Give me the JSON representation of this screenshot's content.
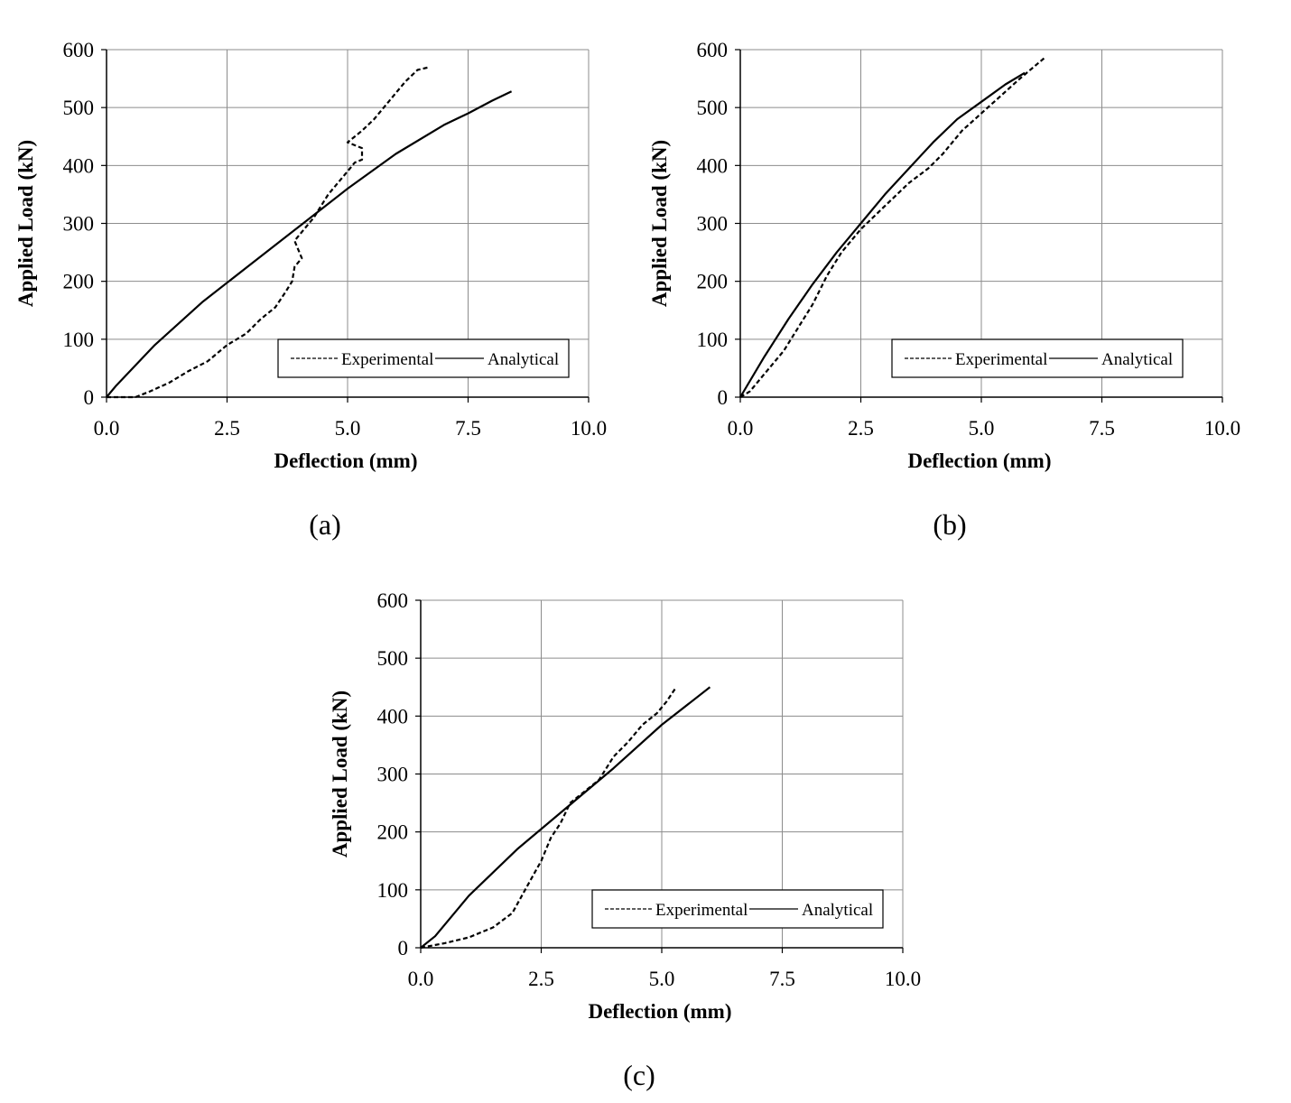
{
  "chart_data": [
    {
      "type": "line",
      "panel_label": "(a)",
      "xlabel": "Deflection (mm)",
      "ylabel": "Applied Load (kN)",
      "xlim": [
        0,
        10
      ],
      "ylim": [
        0,
        600
      ],
      "xticks": [
        "0.0",
        "2.5",
        "5.0",
        "7.5",
        "10.0"
      ],
      "yticks": [
        "0",
        "100",
        "200",
        "300",
        "400",
        "500",
        "600"
      ],
      "grid": true,
      "legend_position": "bottom-right",
      "series": [
        {
          "name": "Experimental",
          "style": "dashed",
          "points": [
            [
              0.0,
              0
            ],
            [
              0.6,
              0
            ],
            [
              0.9,
              10
            ],
            [
              1.3,
              25
            ],
            [
              1.7,
              45
            ],
            [
              2.1,
              62
            ],
            [
              2.5,
              90
            ],
            [
              2.9,
              110
            ],
            [
              3.2,
              135
            ],
            [
              3.5,
              155
            ],
            [
              3.7,
              180
            ],
            [
              3.85,
              200
            ],
            [
              3.9,
              225
            ],
            [
              4.05,
              240
            ],
            [
              3.9,
              270
            ],
            [
              4.1,
              290
            ],
            [
              4.3,
              310
            ],
            [
              4.45,
              330
            ],
            [
              4.6,
              350
            ],
            [
              4.8,
              370
            ],
            [
              5.0,
              390
            ],
            [
              5.15,
              405
            ],
            [
              5.3,
              410
            ],
            [
              5.3,
              430
            ],
            [
              5.0,
              440
            ],
            [
              5.3,
              460
            ],
            [
              5.55,
              480
            ],
            [
              5.8,
              505
            ],
            [
              6.0,
              525
            ],
            [
              6.2,
              545
            ],
            [
              6.45,
              565
            ],
            [
              6.7,
              570
            ]
          ]
        },
        {
          "name": "Analytical",
          "style": "solid",
          "points": [
            [
              0,
              0
            ],
            [
              0.2,
              20
            ],
            [
              1.0,
              90
            ],
            [
              2.0,
              165
            ],
            [
              3.0,
              230
            ],
            [
              4.0,
              295
            ],
            [
              5.0,
              360
            ],
            [
              6.0,
              420
            ],
            [
              7.0,
              470
            ],
            [
              7.5,
              490
            ],
            [
              8.0,
              512
            ],
            [
              8.4,
              528
            ]
          ]
        }
      ]
    },
    {
      "type": "line",
      "panel_label": "(b)",
      "xlabel": "Deflection (mm)",
      "ylabel": "Applied Load (kN)",
      "xlim": [
        0,
        10
      ],
      "ylim": [
        0,
        600
      ],
      "xticks": [
        "0.0",
        "2.5",
        "5.0",
        "7.5",
        "10.0"
      ],
      "yticks": [
        "0",
        "100",
        "200",
        "300",
        "400",
        "500",
        "600"
      ],
      "grid": true,
      "legend_position": "bottom-right",
      "series": [
        {
          "name": "Experimental",
          "style": "dashed",
          "points": [
            [
              0.0,
              0
            ],
            [
              0.2,
              10
            ],
            [
              0.5,
              40
            ],
            [
              0.9,
              80
            ],
            [
              1.2,
              120
            ],
            [
              1.5,
              160
            ],
            [
              1.8,
              210
            ],
            [
              2.1,
              250
            ],
            [
              2.5,
              290
            ],
            [
              3.0,
              330
            ],
            [
              3.5,
              370
            ],
            [
              3.9,
              395
            ],
            [
              4.2,
              420
            ],
            [
              4.6,
              460
            ],
            [
              5.0,
              490
            ],
            [
              5.4,
              520
            ],
            [
              5.8,
              550
            ],
            [
              6.3,
              585
            ]
          ]
        },
        {
          "name": "Analytical",
          "style": "solid",
          "points": [
            [
              0,
              0
            ],
            [
              0.5,
              70
            ],
            [
              1.0,
              135
            ],
            [
              1.5,
              195
            ],
            [
              2.0,
              250
            ],
            [
              2.5,
              300
            ],
            [
              3.0,
              350
            ],
            [
              3.5,
              395
            ],
            [
              4.0,
              440
            ],
            [
              4.5,
              480
            ],
            [
              5.0,
              510
            ],
            [
              5.5,
              540
            ],
            [
              5.9,
              560
            ]
          ]
        }
      ]
    },
    {
      "type": "line",
      "panel_label": "(c)",
      "xlabel": "Deflection (mm)",
      "ylabel": "Applied Load (kN)",
      "xlim": [
        0,
        10
      ],
      "ylim": [
        0,
        600
      ],
      "xticks": [
        "0.0",
        "2.5",
        "5.0",
        "7.5",
        "10.0"
      ],
      "yticks": [
        "0",
        "100",
        "200",
        "300",
        "400",
        "500",
        "600"
      ],
      "grid": true,
      "legend_position": "bottom-right",
      "series": [
        {
          "name": "Experimental",
          "style": "dashed",
          "points": [
            [
              0.0,
              0
            ],
            [
              0.5,
              8
            ],
            [
              1.0,
              18
            ],
            [
              1.5,
              35
            ],
            [
              1.9,
              60
            ],
            [
              2.1,
              90
            ],
            [
              2.3,
              120
            ],
            [
              2.5,
              150
            ],
            [
              2.7,
              190
            ],
            [
              2.9,
              215
            ],
            [
              3.1,
              250
            ],
            [
              3.4,
              270
            ],
            [
              3.7,
              290
            ],
            [
              4.0,
              330
            ],
            [
              4.3,
              355
            ],
            [
              4.6,
              385
            ],
            [
              4.9,
              405
            ],
            [
              5.1,
              425
            ],
            [
              5.3,
              450
            ]
          ]
        },
        {
          "name": "Analytical",
          "style": "solid",
          "points": [
            [
              0,
              0
            ],
            [
              0.3,
              20
            ],
            [
              1.0,
              90
            ],
            [
              2.0,
              170
            ],
            [
              3.0,
              240
            ],
            [
              4.0,
              310
            ],
            [
              5.0,
              385
            ],
            [
              6.0,
              450
            ]
          ]
        }
      ]
    }
  ]
}
